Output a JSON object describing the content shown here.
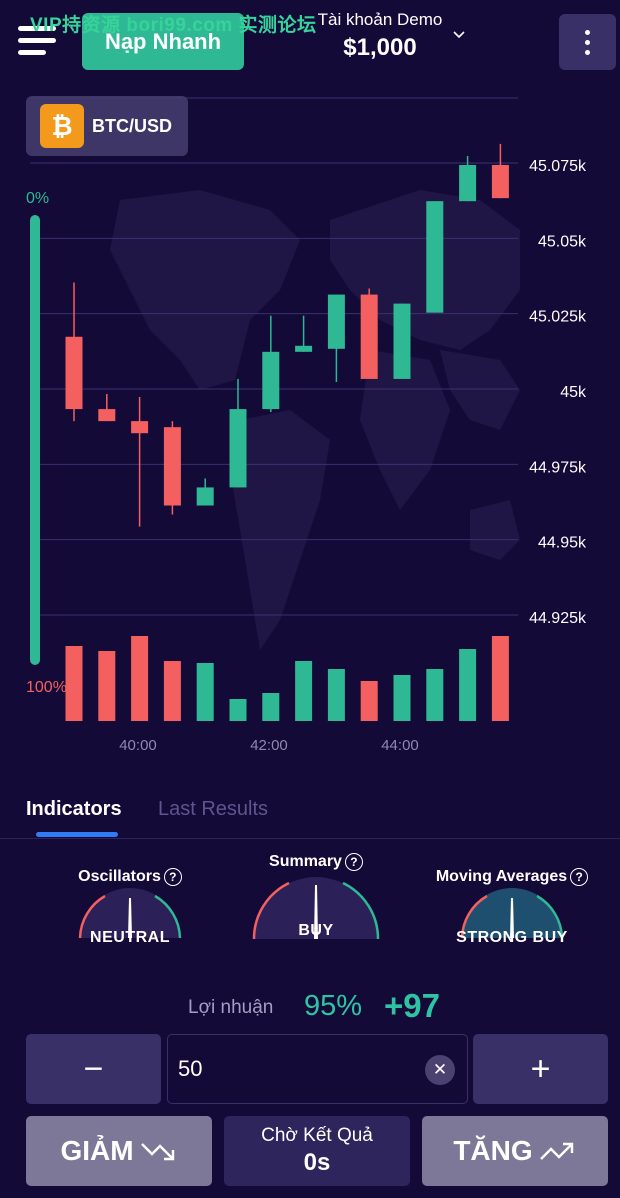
{
  "header": {
    "quick_button": "Nạp Nhanh",
    "watermark": "VIP持资源 bori99.com 实测论坛",
    "account_name": "Tài khoản Demo",
    "balance": "$1,000"
  },
  "asset": {
    "symbol": "₿",
    "pair": "BTC/USD"
  },
  "sentiment": {
    "top_label": "0%",
    "bottom_label": "100%",
    "green_fraction": 0.0
  },
  "chart_data": {
    "type": "candlestick",
    "ylim": [
      44.9,
      45.1
    ],
    "yticks": [
      45.075,
      45.05,
      45.025,
      45.0,
      44.975,
      44.95,
      44.925
    ],
    "ytick_labels": [
      "45.075k",
      "45.05k",
      "45.025k",
      "45k",
      "44.975k",
      "44.95k",
      "44.925k"
    ],
    "xtick_labels": [
      "40:00",
      "42:00",
      "44:00"
    ],
    "candles": [
      {
        "o": 45.018,
        "c": 44.994,
        "h": 45.036,
        "l": 44.99,
        "v": 75,
        "up": false
      },
      {
        "o": 44.994,
        "c": 44.99,
        "h": 44.999,
        "l": 44.99,
        "v": 70,
        "up": false
      },
      {
        "o": 44.99,
        "c": 44.986,
        "h": 44.998,
        "l": 44.955,
        "v": 85,
        "up": false
      },
      {
        "o": 44.988,
        "c": 44.962,
        "h": 44.99,
        "l": 44.959,
        "v": 60,
        "up": false
      },
      {
        "o": 44.962,
        "c": 44.968,
        "h": 44.971,
        "l": 44.962,
        "v": 58,
        "up": true
      },
      {
        "o": 44.968,
        "c": 44.994,
        "h": 45.004,
        "l": 44.968,
        "v": 22,
        "up": true
      },
      {
        "o": 44.994,
        "c": 45.013,
        "h": 45.025,
        "l": 44.993,
        "v": 28,
        "up": true
      },
      {
        "o": 45.013,
        "c": 45.015,
        "h": 45.025,
        "l": 45.013,
        "v": 60,
        "up": true
      },
      {
        "o": 45.014,
        "c": 45.032,
        "h": 45.032,
        "l": 45.003,
        "v": 52,
        "up": true
      },
      {
        "o": 45.032,
        "c": 45.004,
        "h": 45.034,
        "l": 45.004,
        "v": 40,
        "up": false
      },
      {
        "o": 45.004,
        "c": 45.029,
        "h": 45.029,
        "l": 45.004,
        "v": 46,
        "up": true
      },
      {
        "o": 45.026,
        "c": 45.063,
        "h": 45.063,
        "l": 45.026,
        "v": 52,
        "up": true
      },
      {
        "o": 45.063,
        "c": 45.075,
        "h": 45.078,
        "l": 45.063,
        "v": 72,
        "up": true
      },
      {
        "o": 45.075,
        "c": 45.064,
        "h": 45.082,
        "l": 45.064,
        "v": 85,
        "up": false
      }
    ]
  },
  "tabs": [
    {
      "label": "Indicators"
    },
    {
      "label": "Last Results"
    }
  ],
  "gauges": [
    {
      "title": "Oscillators",
      "status": "NEUTRAL"
    },
    {
      "title": "Summary",
      "status": "BUY"
    },
    {
      "title": "Moving Averages",
      "status": "STRONG BUY"
    }
  ],
  "profit": {
    "label": "Lợi nhuận",
    "percent": "95%",
    "amount": "+97"
  },
  "trade": {
    "amount_value": "50",
    "minus": "−",
    "plus": "+",
    "clear": "✕",
    "down_label": "GIẢM",
    "up_label": "TĂNG",
    "wait_label": "Chờ Kết Quả",
    "countdown": "0s"
  },
  "colors": {
    "up": "#2fb894",
    "down": "#f4605f",
    "bg": "#130a38"
  }
}
